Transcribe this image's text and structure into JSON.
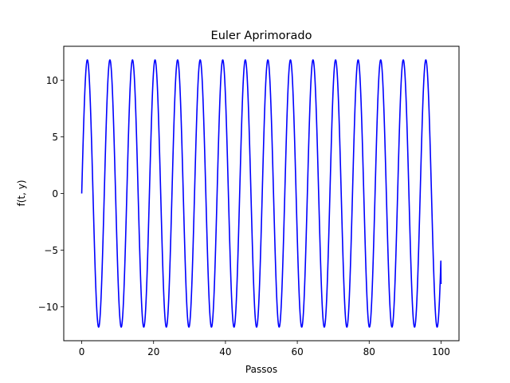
{
  "chart_data": {
    "type": "line",
    "title": "Euler Aprimorado",
    "xlabel": "Passos",
    "ylabel": "f(t, y)",
    "xlim": [
      -5,
      105
    ],
    "ylim": [
      -13,
      13
    ],
    "xticks": [
      0,
      20,
      40,
      60,
      80,
      100
    ],
    "xtick_labels": [
      "0",
      "20",
      "40",
      "60",
      "80",
      "100"
    ],
    "yticks": [
      -10,
      -5,
      0,
      5,
      10
    ],
    "ytick_labels": [
      "−10",
      "−5",
      "0",
      "5",
      "10"
    ],
    "grid": false,
    "legend": false,
    "series": [
      {
        "color": "#0000ff",
        "function": "sine",
        "amplitude": 11.8,
        "period": 6.28,
        "x_start": 0,
        "x_end": 100,
        "y_start": 0,
        "y_end": -8.0
      }
    ]
  }
}
